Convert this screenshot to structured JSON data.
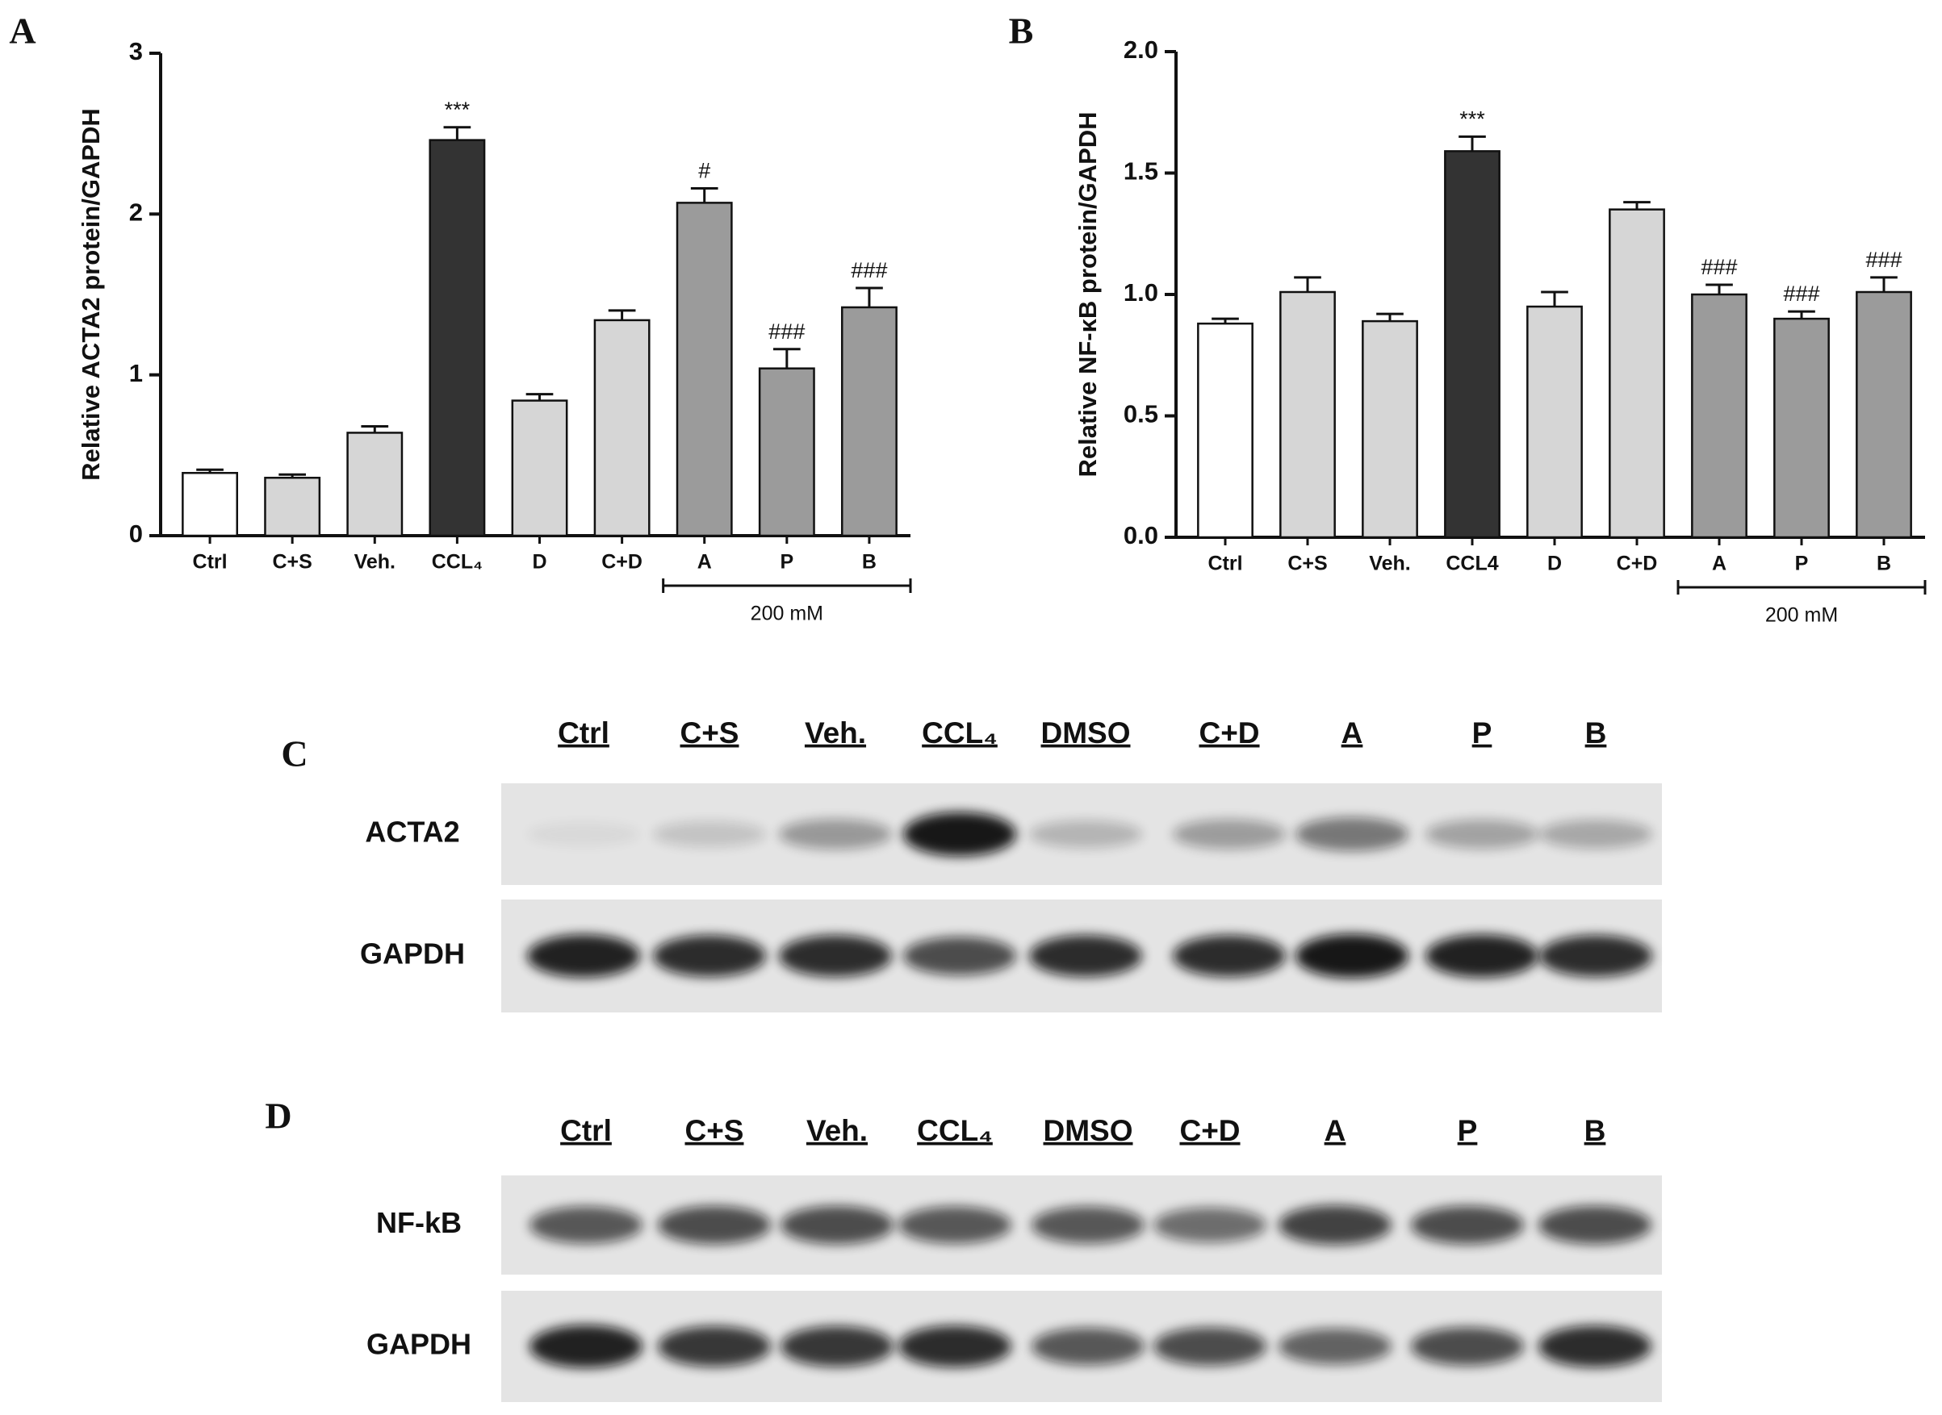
{
  "chart_data": [
    {
      "type": "bar",
      "panel_label": "A",
      "y_label": "Relative ACTA2 protein/GAPDH",
      "categories": [
        "Ctrl",
        "C+S",
        "Veh.",
        "CCL₄",
        "D",
        "C+D",
        "A",
        "P",
        "B"
      ],
      "values": [
        0.39,
        0.36,
        0.64,
        2.46,
        0.84,
        1.34,
        2.07,
        1.04,
        1.42
      ],
      "errors": [
        0.02,
        0.02,
        0.04,
        0.08,
        0.04,
        0.06,
        0.09,
        0.12,
        0.12
      ],
      "colors": [
        "#ffffff",
        "#d6d6d6",
        "#d6d6d6",
        "#333333",
        "#d6d6d6",
        "#d6d6d6",
        "#9b9b9b",
        "#9b9b9b",
        "#9b9b9b"
      ],
      "annotations": [
        null,
        null,
        null,
        "***",
        null,
        null,
        "#",
        "###",
        "###"
      ],
      "bracket": {
        "label": "200 mM",
        "span": [
          "A",
          "B"
        ]
      },
      "ylim": [
        0,
        3
      ],
      "yticks": [
        0,
        1,
        2,
        3
      ]
    },
    {
      "type": "bar",
      "panel_label": "B",
      "y_label": "Relative NF-κB protein/GAPDH",
      "categories": [
        "Ctrl",
        "C+S",
        "Veh.",
        "CCL4",
        "D",
        "C+D",
        "A",
        "P",
        "B"
      ],
      "values": [
        0.88,
        1.01,
        0.89,
        1.59,
        0.95,
        1.35,
        1.0,
        0.9,
        1.01
      ],
      "errors": [
        0.02,
        0.06,
        0.03,
        0.06,
        0.06,
        0.03,
        0.04,
        0.03,
        0.06
      ],
      "colors": [
        "#ffffff",
        "#d6d6d6",
        "#d6d6d6",
        "#333333",
        "#d6d6d6",
        "#d6d6d6",
        "#9b9b9b",
        "#9b9b9b",
        "#9b9b9b"
      ],
      "annotations": [
        null,
        null,
        null,
        "***",
        null,
        null,
        "###",
        "###",
        "###"
      ],
      "bracket": {
        "label": "200 mM",
        "span": [
          "A",
          "B"
        ]
      },
      "ylim": [
        0,
        2
      ],
      "yticks": [
        {
          "value": 0,
          "label": "0.0"
        },
        0.5,
        {
          "value": 1,
          "label": "1.0"
        },
        1.5,
        {
          "value": 2,
          "label": "2.0"
        }
      ]
    }
  ],
  "blots": [
    {
      "panel_label": "C",
      "lanes": [
        "Ctrl",
        "C+S",
        "Veh.",
        "CCL₄",
        "DMSO",
        "C+D",
        "A",
        "P",
        "B"
      ],
      "rows": [
        "ACTA2",
        "GAPDH"
      ]
    },
    {
      "panel_label": "D",
      "lanes": [
        "Ctrl",
        "C+S",
        "Veh.",
        "CCL₄",
        "DMSO",
        "C+D",
        "A",
        "P",
        "B"
      ],
      "rows": [
        "NF-kB",
        "GAPDH"
      ]
    }
  ]
}
